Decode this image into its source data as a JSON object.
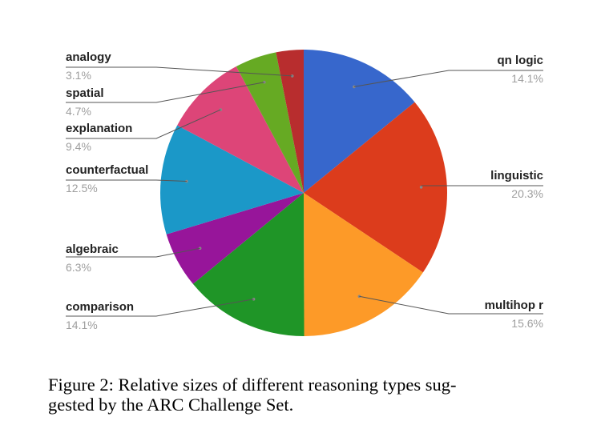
{
  "chart_data": {
    "type": "pie",
    "slices": [
      {
        "label": "qn logic",
        "value": 14.1,
        "pct_text": "14.1%",
        "color": "#3767cc"
      },
      {
        "label": "linguistic",
        "value": 20.3,
        "pct_text": "20.3%",
        "color": "#dc3c1c"
      },
      {
        "label": "multihop r",
        "value": 15.6,
        "pct_text": "15.6%",
        "color": "#fd9a28"
      },
      {
        "label": "comparison",
        "value": 14.1,
        "pct_text": "14.1%",
        "color": "#1f9527"
      },
      {
        "label": "algebraic",
        "value": 6.3,
        "pct_text": "6.3%",
        "color": "#97159a"
      },
      {
        "label": "counterfactual",
        "value": 12.5,
        "pct_text": "12.5%",
        "color": "#1b98c8"
      },
      {
        "label": "explanation",
        "value": 9.4,
        "pct_text": "9.4%",
        "color": "#dd4578"
      },
      {
        "label": "spatial",
        "value": 4.7,
        "pct_text": "4.7%",
        "color": "#66aa23"
      },
      {
        "label": "analogy",
        "value": 3.1,
        "pct_text": "3.1%",
        "color": "#b82d2e"
      }
    ]
  },
  "caption": {
    "line1": "Figure 2:  Relative sizes of different reasoning types sug-",
    "line2": "gested by the ARC Challenge Set."
  }
}
